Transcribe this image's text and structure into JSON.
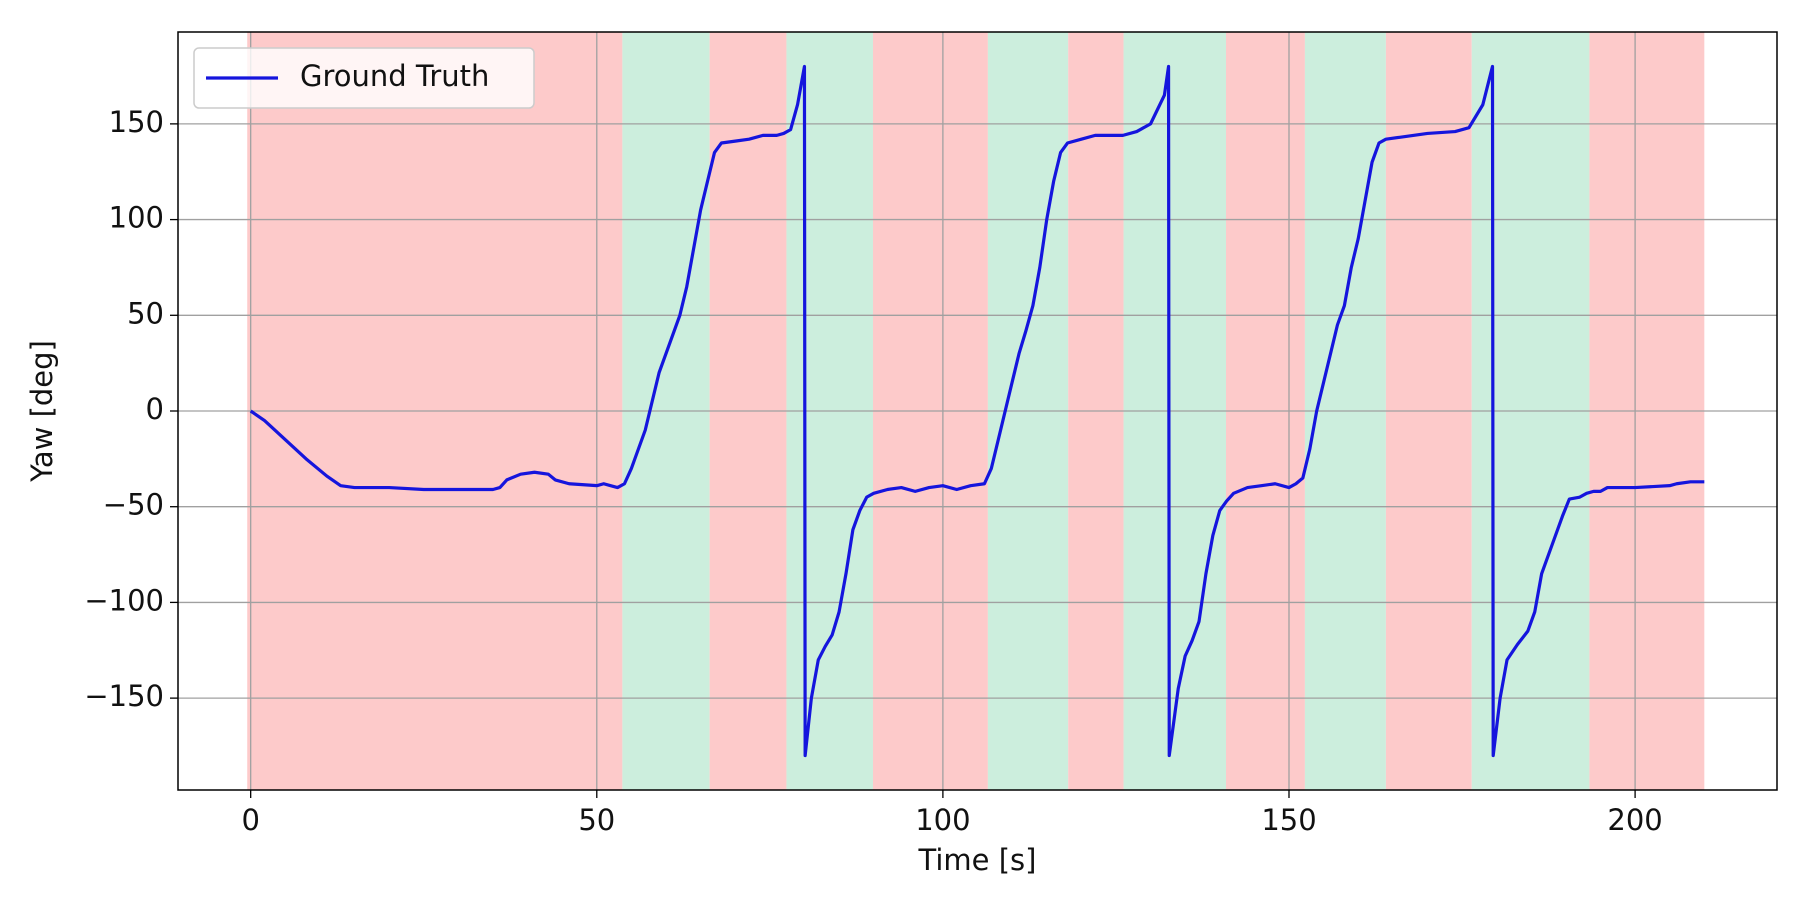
{
  "chart_data": {
    "type": "line",
    "xlabel": "Time [s]",
    "ylabel": "Yaw [deg]",
    "xlim": [
      -10.5,
      220.5
    ],
    "ylim": [
      -198,
      198
    ],
    "xticks": [
      0,
      50,
      100,
      150,
      200
    ],
    "yticks": [
      {
        "value": -150,
        "label": "−150"
      },
      {
        "value": -100,
        "label": "−100"
      },
      {
        "value": -50,
        "label": "−50"
      },
      0,
      50,
      100,
      150
    ],
    "grid": true,
    "legend": "upper left",
    "spans": [
      {
        "start": -0.5,
        "end": 53.7,
        "color": "#fdcaca"
      },
      {
        "start": 53.7,
        "end": 66.3,
        "color": "#cceedd"
      },
      {
        "start": 66.3,
        "end": 77.4,
        "color": "#fdcaca"
      },
      {
        "start": 77.4,
        "end": 89.9,
        "color": "#cceedd"
      },
      {
        "start": 89.9,
        "end": 106.5,
        "color": "#fdcaca"
      },
      {
        "start": 106.5,
        "end": 118.1,
        "color": "#cceedd"
      },
      {
        "start": 118.1,
        "end": 126.1,
        "color": "#fdcaca"
      },
      {
        "start": 126.1,
        "end": 140.9,
        "color": "#cceedd"
      },
      {
        "start": 140.9,
        "end": 152.3,
        "color": "#fdcaca"
      },
      {
        "start": 152.3,
        "end": 164,
        "color": "#cceedd"
      },
      {
        "start": 164,
        "end": 176.4,
        "color": "#fdcaca"
      },
      {
        "start": 176.4,
        "end": 193.4,
        "color": "#cceedd"
      },
      {
        "start": 193.4,
        "end": 210,
        "color": "#fdcaca"
      }
    ],
    "x": [
      0,
      2,
      5,
      8,
      11,
      13,
      15,
      20,
      25,
      30,
      35,
      36,
      37,
      39,
      41,
      43,
      44,
      46,
      50,
      51,
      52,
      53,
      54,
      55,
      57,
      59,
      61,
      62,
      63,
      64,
      65,
      66,
      67,
      68,
      70,
      72,
      74,
      76,
      77,
      78,
      79,
      80,
      80.1,
      81,
      82,
      83,
      84,
      85,
      86,
      87,
      88,
      89,
      90,
      92,
      94,
      96,
      98,
      100,
      102,
      104,
      106,
      107,
      108,
      110,
      111,
      112,
      113,
      114,
      115,
      116,
      117,
      118,
      120,
      122,
      126,
      128,
      130,
      132,
      132.6,
      132.7,
      134,
      135,
      136,
      137,
      138,
      139,
      140,
      141,
      142,
      144,
      146,
      148,
      150,
      151,
      152,
      153,
      154,
      156,
      157,
      158,
      159,
      160,
      161,
      162,
      163,
      164,
      166,
      170,
      174,
      176,
      178,
      179.4,
      179.5,
      180.5,
      181.5,
      183,
      184.5,
      185.5,
      186.5,
      188,
      189.5,
      190.5,
      192,
      193,
      194,
      195,
      196,
      200,
      205,
      206,
      208,
      210
    ],
    "series": [
      {
        "name": "Ground Truth",
        "color": "#1515dd",
        "values": [
          0,
          -5,
          -15,
          -25,
          -34,
          -39,
          -40,
          -40,
          -41,
          -41,
          -41,
          -40,
          -36,
          -33,
          -32,
          -33,
          -36,
          -38,
          -39,
          -38,
          -39,
          -40,
          -38,
          -30,
          -10,
          20,
          40,
          50,
          65,
          85,
          105,
          120,
          135,
          140,
          141,
          142,
          144,
          144,
          145,
          147,
          160,
          180,
          -180,
          -150,
          -130,
          -123,
          -117,
          -105,
          -85,
          -62,
          -52,
          -45,
          -43,
          -41,
          -40,
          -42,
          -40,
          -39,
          -41,
          -39,
          -38,
          -30,
          -15,
          15,
          30,
          42,
          55,
          75,
          100,
          120,
          135,
          140,
          142,
          144,
          144,
          146,
          150,
          165,
          180,
          -180,
          -145,
          -128,
          -120,
          -110,
          -85,
          -65,
          -52,
          -47,
          -43,
          -40,
          -39,
          -38,
          -40,
          -38,
          -35,
          -20,
          0,
          30,
          45,
          55,
          75,
          90,
          110,
          130,
          140,
          142,
          143,
          145,
          146,
          148,
          160,
          180,
          -180,
          -150,
          -130,
          -122,
          -115,
          -105,
          -85,
          -70,
          -55,
          -46,
          -45,
          -43,
          -42,
          -42,
          -40,
          -40,
          -39,
          -38,
          -37,
          -37
        ]
      }
    ]
  }
}
